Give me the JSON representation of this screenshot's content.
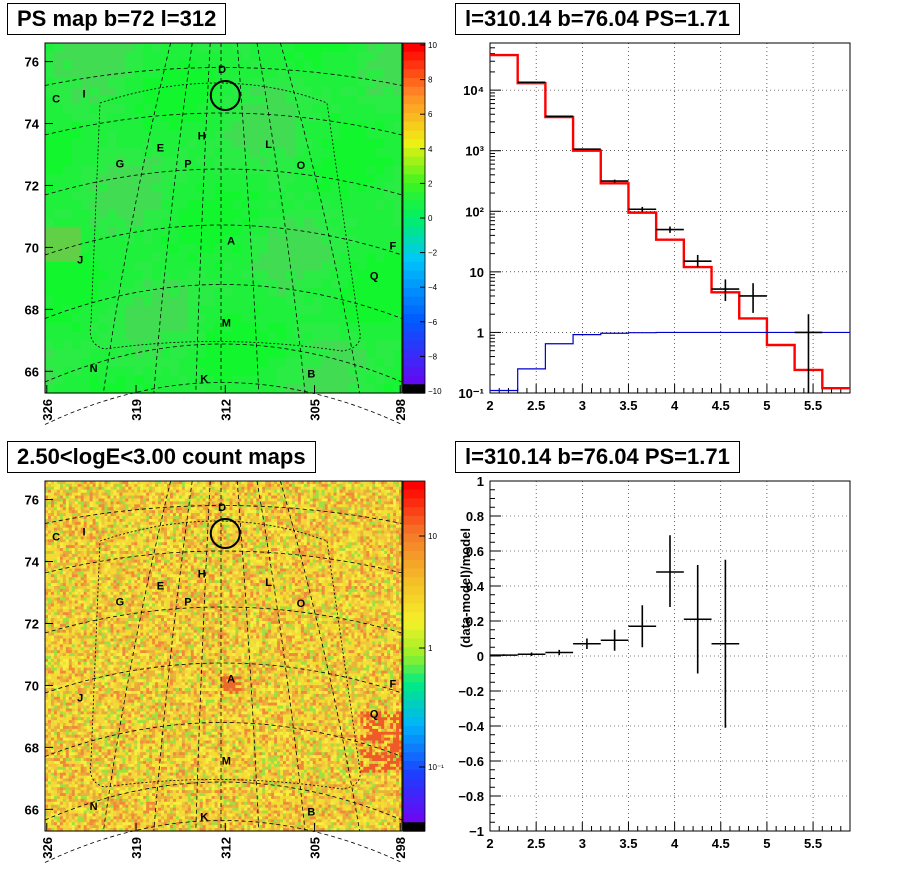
{
  "panels": {
    "ps_map": {
      "title": "PS map b=72 l=312",
      "yticks": [
        "76",
        "74",
        "72",
        "70",
        "68",
        "66"
      ],
      "xticks": [
        "326",
        "319",
        "312",
        "305",
        "298"
      ],
      "colorbar_ticks": [
        "10",
        "8",
        "6",
        "4",
        "2",
        "0",
        "−2",
        "−4",
        "−6",
        "−8",
        "−10"
      ],
      "source_labels": [
        "C",
        "I",
        "D",
        "H",
        "L",
        "E",
        "G",
        "P",
        "O",
        "A",
        "J",
        "F",
        "Q",
        "M",
        "N",
        "K",
        "B"
      ]
    },
    "count_map": {
      "title": "2.50<logE<3.00 count maps",
      "yticks": [
        "76",
        "74",
        "72",
        "70",
        "68",
        "66"
      ],
      "xticks": [
        "326",
        "319",
        "312",
        "305",
        "298"
      ],
      "colorbar_ticks": [
        "10",
        "1",
        "10⁻¹"
      ],
      "source_labels": [
        "C",
        "I",
        "D",
        "H",
        "L",
        "E",
        "G",
        "P",
        "O",
        "A",
        "J",
        "F",
        "Q",
        "M",
        "N",
        "K",
        "B"
      ]
    },
    "spectrum": {
      "title": "l=310.14 b=76.04 PS=1.71",
      "xticks": [
        "2",
        "2.5",
        "3",
        "3.5",
        "4",
        "4.5",
        "5",
        "5.5"
      ],
      "yticks": [
        "10⁻¹",
        "1",
        "10",
        "10²",
        "10³",
        "10⁴"
      ]
    },
    "residual": {
      "title": "l=310.14 b=76.04 PS=1.71",
      "ylabel": "(data-model)/model",
      "xticks": [
        "2",
        "2.5",
        "3",
        "3.5",
        "4",
        "4.5",
        "5",
        "5.5"
      ],
      "yticks": [
        "−1",
        "−0.8",
        "−0.6",
        "−0.4",
        "−0.2",
        "0",
        "0.2",
        "0.4",
        "0.6",
        "0.8",
        "1"
      ]
    }
  },
  "chart_data": [
    {
      "type": "heatmap",
      "title": "PS map b=72 l=312",
      "xlabel": "",
      "ylabel": "",
      "xlim": [
        298,
        326
      ],
      "ylim": [
        65.3,
        76.6
      ],
      "colorbar_range": [
        -10,
        10
      ],
      "marked_position": {
        "l": 312,
        "b": 74.8
      }
    },
    {
      "type": "heatmap",
      "title": "2.50<logE<3.00 count maps",
      "xlabel": "",
      "ylabel": "",
      "xlim": [
        298,
        326
      ],
      "ylim": [
        65.3,
        76.6
      ],
      "colorbar_scale": "log",
      "marked_position": {
        "l": 312,
        "b": 74.8
      }
    },
    {
      "type": "line",
      "title": "l=310.14 b=76.04 PS=1.71",
      "xlabel": "",
      "ylabel": "",
      "xlim": [
        2,
        5.9
      ],
      "ylim": [
        0.1,
        60000
      ],
      "yscale": "log",
      "grid": true,
      "series": [
        {
          "color": "#ff0000",
          "kind": "step",
          "edges": [
            2.0,
            2.3,
            2.6,
            2.9,
            3.2,
            3.5,
            3.8,
            4.1,
            4.4,
            4.7,
            5.0,
            5.3,
            5.6,
            5.9
          ],
          "values": [
            38000,
            13000,
            3600,
            1000,
            290,
            95,
            34,
            12,
            4.6,
            1.7,
            0.62,
            0.24,
            0.12
          ]
        },
        {
          "color": "#0000cc",
          "kind": "step",
          "edges": [
            2.0,
            2.3,
            2.6,
            2.9,
            3.2,
            3.5,
            3.8,
            4.1,
            4.4,
            4.7,
            5.0,
            5.3,
            5.6,
            5.9
          ],
          "values": [
            0.11,
            0.25,
            0.65,
            0.92,
            0.97,
            0.99,
            1.0,
            1.0,
            1.0,
            1.0,
            1.0,
            1.0,
            1.0
          ]
        },
        {
          "color": "#000000",
          "kind": "errorbar",
          "x": [
            2.45,
            2.75,
            3.05,
            3.35,
            3.65,
            3.95,
            4.25,
            4.55,
            4.85,
            5.45
          ],
          "y": [
            13500,
            3700,
            1060,
            315,
            108,
            50,
            15,
            5.2,
            4,
            1
          ],
          "x_half": [
            0.15,
            0.15,
            0.15,
            0.15,
            0.15,
            0.15,
            0.15,
            0.15,
            0.15,
            0.15
          ],
          "y_low": [
            13350,
            3630,
            1030,
            298,
            98,
            44,
            12,
            3.3,
            2.1,
            0.1
          ],
          "y_high": [
            13650,
            3770,
            1090,
            333,
            118,
            56,
            19,
            7.5,
            6.5,
            2
          ]
        }
      ]
    },
    {
      "type": "scatter",
      "title": "l=310.14 b=76.04 PS=1.71",
      "xlabel": "",
      "ylabel": "(data-model)/model",
      "xlim": [
        2,
        5.9
      ],
      "ylim": [
        -1,
        1
      ],
      "grid": true,
      "series": [
        {
          "color": "#000000",
          "kind": "errorbar",
          "x": [
            2.15,
            2.45,
            2.75,
            3.05,
            3.35,
            3.65,
            3.95,
            4.25,
            4.55
          ],
          "y": [
            0.005,
            0.01,
            0.02,
            0.07,
            0.09,
            0.17,
            0.48,
            0.21,
            0.07
          ],
          "x_half": [
            0.15,
            0.15,
            0.15,
            0.15,
            0.15,
            0.15,
            0.15,
            0.15,
            0.15
          ],
          "y_low": [
            0.0,
            0.0,
            0.005,
            0.04,
            0.03,
            0.05,
            0.28,
            -0.1,
            -0.41
          ],
          "y_high": [
            0.01,
            0.02,
            0.035,
            0.1,
            0.15,
            0.29,
            0.69,
            0.52,
            0.55
          ]
        }
      ]
    }
  ]
}
